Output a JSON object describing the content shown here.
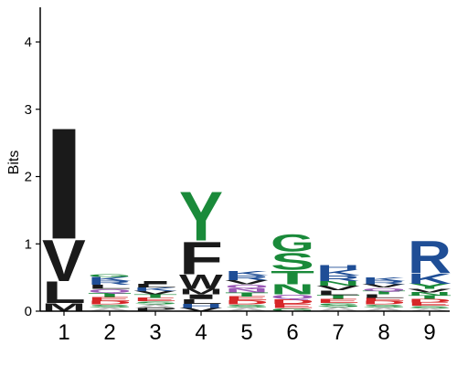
{
  "chart_data": {
    "type": "sequence-logo",
    "ylabel": "Bits",
    "xlabel": "",
    "ylim": [
      0,
      4.5
    ],
    "yticks": [
      "0",
      "1",
      "2",
      "3",
      "4"
    ],
    "positions": [
      "1",
      "2",
      "3",
      "4",
      "5",
      "6",
      "7",
      "8",
      "9"
    ],
    "colors": {
      "hydrophobic": "#1a1a1a",
      "polar": "#1a8a3a",
      "basic": "#1f4e96",
      "acidic": "#d62728",
      "amide": "#9b59b6",
      "small": "#c0c0c0"
    },
    "columns": [
      {
        "position": "1",
        "stack": [
          {
            "letter": "M",
            "bits": 0.12,
            "color": "#1a1a1a"
          },
          {
            "letter": "L",
            "bits": 0.33,
            "color": "#1a1a1a"
          },
          {
            "letter": "V",
            "bits": 0.63,
            "color": "#1a1a1a"
          },
          {
            "letter": "I",
            "bits": 1.7,
            "color": "#1a1a1a"
          }
        ]
      },
      {
        "position": "2",
        "stack": [
          {
            "letter": "A",
            "bits": 0.05,
            "color": "#c0c0c0"
          },
          {
            "letter": "S",
            "bits": 0.05,
            "color": "#1a8a3a"
          },
          {
            "letter": "D",
            "bits": 0.05,
            "color": "#d62728"
          },
          {
            "letter": "E",
            "bits": 0.06,
            "color": "#d62728"
          },
          {
            "letter": "T",
            "bits": 0.06,
            "color": "#1a8a3a"
          },
          {
            "letter": "Q",
            "bits": 0.06,
            "color": "#9b59b6"
          },
          {
            "letter": "L",
            "bits": 0.06,
            "color": "#1a1a1a"
          },
          {
            "letter": "R",
            "bits": 0.06,
            "color": "#1f4e96"
          },
          {
            "letter": "K",
            "bits": 0.06,
            "color": "#1f4e96"
          },
          {
            "letter": "G",
            "bits": 0.05,
            "color": "#1a8a3a"
          }
        ]
      },
      {
        "position": "3",
        "stack": [
          {
            "letter": "P",
            "bits": 0.05,
            "color": "#1a1a1a"
          },
          {
            "letter": "A",
            "bits": 0.05,
            "color": "#c0c0c0"
          },
          {
            "letter": "S",
            "bits": 0.05,
            "color": "#1a8a3a"
          },
          {
            "letter": "E",
            "bits": 0.05,
            "color": "#d62728"
          },
          {
            "letter": "T",
            "bits": 0.05,
            "color": "#1a8a3a"
          },
          {
            "letter": "V",
            "bits": 0.05,
            "color": "#1a1a1a"
          },
          {
            "letter": "K",
            "bits": 0.05,
            "color": "#1f4e96"
          },
          {
            "letter": "L",
            "bits": 0.05,
            "color": "#1a1a1a"
          },
          {
            "letter": "I",
            "bits": 0.05,
            "color": "#1a1a1a"
          }
        ]
      },
      {
        "position": "4",
        "stack": [
          {
            "letter": "V",
            "bits": 0.05,
            "color": "#1a1a1a"
          },
          {
            "letter": "H",
            "bits": 0.06,
            "color": "#1f4e96"
          },
          {
            "letter": "L",
            "bits": 0.07,
            "color": "#1a1a1a"
          },
          {
            "letter": "I",
            "bits": 0.07,
            "color": "#1a1a1a"
          },
          {
            "letter": "M",
            "bits": 0.08,
            "color": "#1a1a1a"
          },
          {
            "letter": "W",
            "bits": 0.22,
            "color": "#1a1a1a"
          },
          {
            "letter": "F",
            "bits": 0.5,
            "color": "#1a1a1a"
          },
          {
            "letter": "Y",
            "bits": 0.75,
            "color": "#1a8a3a"
          }
        ]
      },
      {
        "position": "5",
        "stack": [
          {
            "letter": "A",
            "bits": 0.05,
            "color": "#c0c0c0"
          },
          {
            "letter": "S",
            "bits": 0.05,
            "color": "#1a8a3a"
          },
          {
            "letter": "D",
            "bits": 0.06,
            "color": "#d62728"
          },
          {
            "letter": "E",
            "bits": 0.06,
            "color": "#d62728"
          },
          {
            "letter": "T",
            "bits": 0.06,
            "color": "#1a8a3a"
          },
          {
            "letter": "N",
            "bits": 0.06,
            "color": "#9b59b6"
          },
          {
            "letter": "Q",
            "bits": 0.06,
            "color": "#9b59b6"
          },
          {
            "letter": "V",
            "bits": 0.06,
            "color": "#1a1a1a"
          },
          {
            "letter": "R",
            "bits": 0.07,
            "color": "#1f4e96"
          },
          {
            "letter": "K",
            "bits": 0.07,
            "color": "#1f4e96"
          }
        ]
      },
      {
        "position": "6",
        "stack": [
          {
            "letter": "G",
            "bits": 0.05,
            "color": "#1a8a3a"
          },
          {
            "letter": "E",
            "bits": 0.06,
            "color": "#d62728"
          },
          {
            "letter": "D",
            "bits": 0.07,
            "color": "#d62728"
          },
          {
            "letter": "Q",
            "bits": 0.07,
            "color": "#9b59b6"
          },
          {
            "letter": "N",
            "bits": 0.15,
            "color": "#1a8a3a"
          },
          {
            "letter": "T",
            "bits": 0.21,
            "color": "#1a8a3a"
          },
          {
            "letter": "S",
            "bits": 0.27,
            "color": "#1a8a3a"
          },
          {
            "letter": "G",
            "bits": 0.28,
            "color": "#1a8a3a"
          }
        ]
      },
      {
        "position": "7",
        "stack": [
          {
            "letter": "A",
            "bits": 0.06,
            "color": "#c0c0c0"
          },
          {
            "letter": "S",
            "bits": 0.06,
            "color": "#1a8a3a"
          },
          {
            "letter": "E",
            "bits": 0.06,
            "color": "#d62728"
          },
          {
            "letter": "T",
            "bits": 0.06,
            "color": "#1a8a3a"
          },
          {
            "letter": "L",
            "bits": 0.07,
            "color": "#1a1a1a"
          },
          {
            "letter": "V",
            "bits": 0.07,
            "color": "#1a1a1a"
          },
          {
            "letter": "N",
            "bits": 0.07,
            "color": "#1a8a3a"
          },
          {
            "letter": "R",
            "bits": 0.08,
            "color": "#1f4e96"
          },
          {
            "letter": "K",
            "bits": 0.09,
            "color": "#1f4e96"
          },
          {
            "letter": "H",
            "bits": 0.07,
            "color": "#1f4e96"
          }
        ]
      },
      {
        "position": "8",
        "stack": [
          {
            "letter": "A",
            "bits": 0.05,
            "color": "#c0c0c0"
          },
          {
            "letter": "S",
            "bits": 0.05,
            "color": "#1a8a3a"
          },
          {
            "letter": "D",
            "bits": 0.05,
            "color": "#d62728"
          },
          {
            "letter": "E",
            "bits": 0.05,
            "color": "#d62728"
          },
          {
            "letter": "L",
            "bits": 0.05,
            "color": "#1a1a1a"
          },
          {
            "letter": "T",
            "bits": 0.05,
            "color": "#1a8a3a"
          },
          {
            "letter": "Q",
            "bits": 0.05,
            "color": "#9b59b6"
          },
          {
            "letter": "V",
            "bits": 0.05,
            "color": "#1a1a1a"
          },
          {
            "letter": "R",
            "bits": 0.05,
            "color": "#1f4e96"
          },
          {
            "letter": "K",
            "bits": 0.05,
            "color": "#1f4e96"
          }
        ]
      },
      {
        "position": "9",
        "stack": [
          {
            "letter": "A",
            "bits": 0.04,
            "color": "#c0c0c0"
          },
          {
            "letter": "S",
            "bits": 0.04,
            "color": "#1a8a3a"
          },
          {
            "letter": "E",
            "bits": 0.05,
            "color": "#d62728"
          },
          {
            "letter": "D",
            "bits": 0.05,
            "color": "#d62728"
          },
          {
            "letter": "T",
            "bits": 0.05,
            "color": "#1a8a3a"
          },
          {
            "letter": "N",
            "bits": 0.05,
            "color": "#1a8a3a"
          },
          {
            "letter": "V",
            "bits": 0.05,
            "color": "#1a1a1a"
          },
          {
            "letter": "Y",
            "bits": 0.08,
            "color": "#1a8a3a"
          },
          {
            "letter": "K",
            "bits": 0.15,
            "color": "#1f4e96"
          },
          {
            "letter": "R",
            "bits": 0.5,
            "color": "#1f4e96"
          }
        ]
      }
    ]
  }
}
